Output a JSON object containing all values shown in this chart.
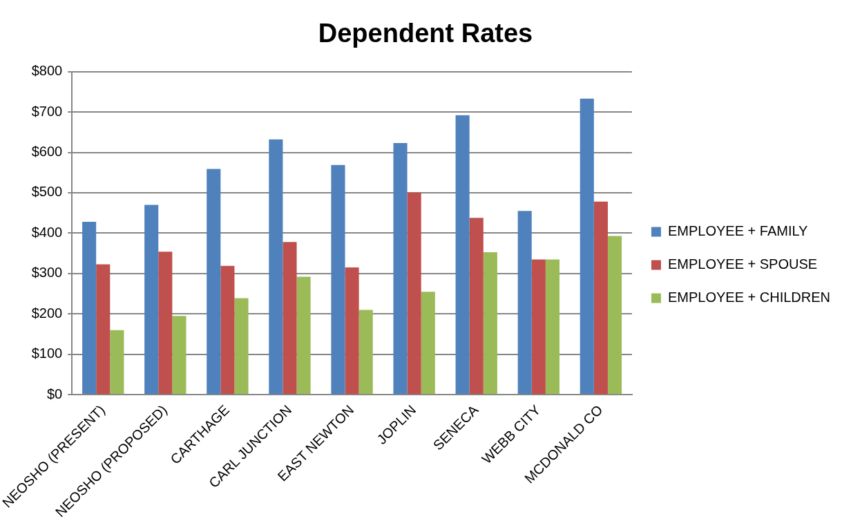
{
  "chart_data": {
    "type": "bar",
    "title": "Dependent Rates",
    "categories": [
      "NEOSHO (PRESENT)",
      "NEOSHO (PROPOSED)",
      "CARTHAGE",
      "CARL JUNCTION",
      "EAST NEWTON",
      "JOPLIN",
      "SENECA",
      "WEBB CITY",
      "MCDONALD CO"
    ],
    "series": [
      {
        "name": "EMPLOYEE + FAMILY",
        "color": "#4f81bd",
        "values": [
          428,
          470,
          559,
          632,
          569,
          623,
          692,
          455,
          733
        ]
      },
      {
        "name": "EMPLOYEE + SPOUSE",
        "color": "#c0504d",
        "values": [
          323,
          354,
          319,
          378,
          315,
          501,
          438,
          335,
          478
        ]
      },
      {
        "name": "EMPLOYEE + CHILDREN",
        "color": "#9bbb59",
        "values": [
          160,
          195,
          239,
          292,
          210,
          255,
          353,
          335,
          393
        ]
      }
    ],
    "ylim": [
      0,
      800
    ],
    "yticks": [
      {
        "value": 0,
        "label": "$0"
      },
      {
        "value": 100,
        "label": "$100"
      },
      {
        "value": 200,
        "label": "$200"
      },
      {
        "value": 300,
        "label": "$300"
      },
      {
        "value": 400,
        "label": "$400"
      },
      {
        "value": 500,
        "label": "$500"
      },
      {
        "value": 600,
        "label": "$600"
      },
      {
        "value": 700,
        "label": "$700"
      },
      {
        "value": 800,
        "label": "$800"
      }
    ],
    "grid": "y",
    "legend": "right"
  }
}
